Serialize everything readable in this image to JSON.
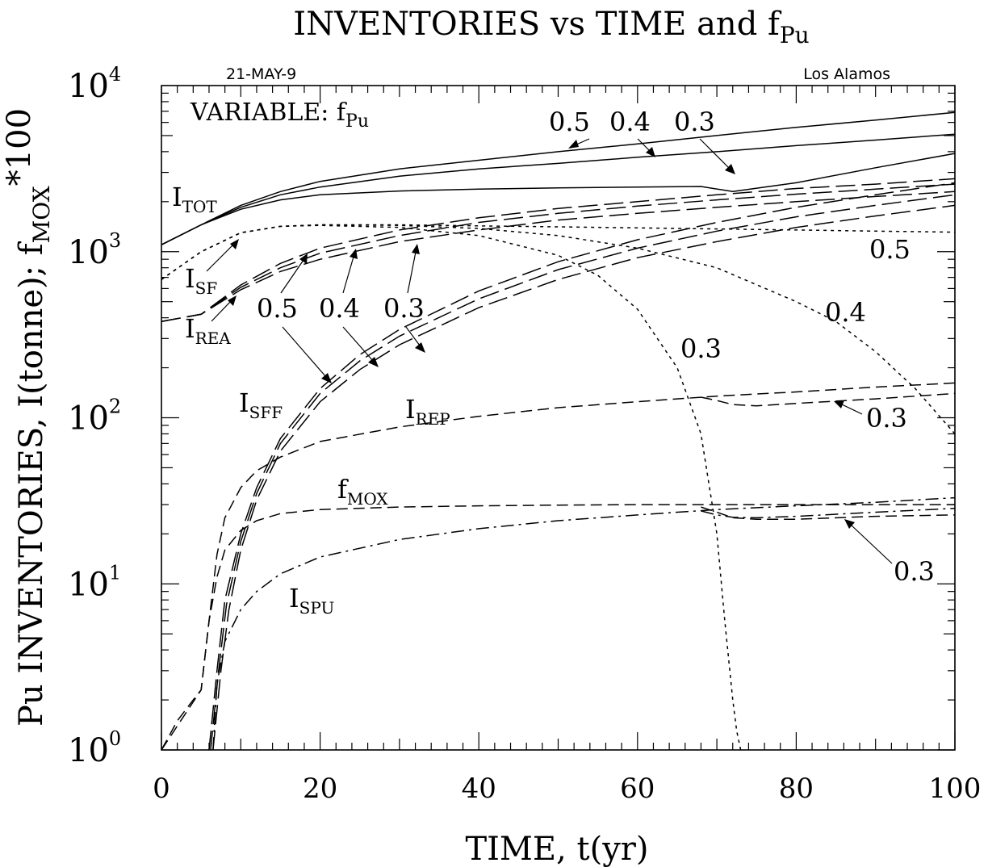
{
  "chart_data": {
    "type": "line",
    "title": "INVENTORIES vs TIME and f",
    "title_sub": "Pu",
    "date_label": "21-MAY-9",
    "org_label": "Los Alamos",
    "variable_label": "VARIABLE: f",
    "variable_label_sub": "Pu",
    "xlabel": "TIME, t(yr)",
    "ylabel": "Pu INVENTORIES, I(tonne); f",
    "ylabel_sub": "MOX",
    "ylabel_tail": "*100",
    "xlim": [
      0,
      100
    ],
    "ylim": [
      1,
      10000
    ],
    "yscale": "log",
    "x_ticks": [
      "0",
      "20",
      "40",
      "60",
      "80",
      "100"
    ],
    "y_ticks": [
      {
        "base": "10",
        "exp": "0"
      },
      {
        "base": "10",
        "exp": "1"
      },
      {
        "base": "10",
        "exp": "2"
      },
      {
        "base": "10",
        "exp": "3"
      },
      {
        "base": "10",
        "exp": "4"
      }
    ],
    "series": [
      {
        "group": "TOT",
        "fpu": "0.5",
        "style": "solid",
        "x": [
          0,
          5,
          10,
          15,
          20,
          30,
          40,
          50,
          60,
          70,
          80,
          90,
          100
        ],
        "y": [
          1100,
          1450,
          1900,
          2300,
          2650,
          3150,
          3550,
          4000,
          4450,
          5000,
          5600,
          6200,
          6900
        ]
      },
      {
        "group": "TOT",
        "fpu": "0.4",
        "style": "solid",
        "x": [
          0,
          5,
          10,
          15,
          20,
          30,
          40,
          50,
          60,
          70,
          80,
          90,
          100
        ],
        "y": [
          1100,
          1450,
          1850,
          2200,
          2450,
          2850,
          3150,
          3400,
          3700,
          4000,
          4350,
          4700,
          5100
        ]
      },
      {
        "group": "TOT",
        "fpu": "0.3",
        "style": "solid",
        "x": [
          0,
          5,
          10,
          15,
          20,
          30,
          40,
          50,
          60,
          68,
          72,
          80,
          90,
          100
        ],
        "y": [
          1100,
          1450,
          1800,
          2050,
          2200,
          2320,
          2380,
          2420,
          2450,
          2470,
          2300,
          2600,
          3200,
          3900
        ]
      },
      {
        "group": "SF",
        "fpu": "0.5",
        "style": "short-dash",
        "x": [
          0,
          5,
          10,
          15,
          20,
          30,
          40,
          50,
          60,
          70,
          80,
          90,
          100
        ],
        "y": [
          680,
          1000,
          1300,
          1420,
          1450,
          1450,
          1430,
          1410,
          1390,
          1370,
          1350,
          1330,
          1310
        ]
      },
      {
        "group": "SF",
        "fpu": "0.4",
        "style": "short-dash",
        "x": [
          0,
          5,
          10,
          15,
          20,
          30,
          40,
          50,
          60,
          70,
          80,
          85,
          90,
          95,
          100
        ],
        "y": [
          680,
          1000,
          1300,
          1420,
          1450,
          1440,
          1380,
          1250,
          1050,
          800,
          500,
          380,
          250,
          150,
          80
        ]
      },
      {
        "group": "SF",
        "fpu": "0.3",
        "style": "short-dash",
        "x": [
          0,
          5,
          10,
          15,
          20,
          30,
          40,
          50,
          55,
          60,
          65,
          68,
          70,
          71,
          72,
          72.5,
          73
        ],
        "y": [
          680,
          1000,
          1300,
          1420,
          1440,
          1400,
          1250,
          950,
          720,
          450,
          200,
          80,
          20,
          6,
          2,
          1.3,
          1
        ]
      },
      {
        "group": "REA",
        "fpu": "0.5",
        "style": "long-dash",
        "x": [
          0,
          5,
          10,
          15,
          20,
          30,
          40,
          50,
          60,
          70,
          80,
          90,
          100
        ],
        "y": [
          380,
          420,
          630,
          850,
          1050,
          1350,
          1600,
          1820,
          2000,
          2200,
          2400,
          2550,
          2750
        ]
      },
      {
        "group": "REA",
        "fpu": "0.4",
        "style": "long-dash",
        "x": [
          0,
          5,
          10,
          15,
          20,
          30,
          40,
          50,
          60,
          70,
          80,
          90,
          100
        ],
        "y": [
          380,
          420,
          610,
          800,
          980,
          1250,
          1500,
          1700,
          1880,
          2050,
          2220,
          2380,
          2550
        ]
      },
      {
        "group": "REA",
        "fpu": "0.3",
        "style": "long-dash",
        "x": [
          0,
          5,
          10,
          15,
          20,
          30,
          40,
          50,
          60,
          70,
          80,
          90,
          100
        ],
        "y": [
          380,
          420,
          590,
          760,
          900,
          1150,
          1350,
          1550,
          1700,
          1850,
          2000,
          2150,
          2300
        ]
      },
      {
        "group": "SFF",
        "fpu": "0.5",
        "style": "long-dash",
        "x": [
          6,
          7,
          8,
          10,
          12,
          15,
          20,
          25,
          30,
          40,
          50,
          60,
          70,
          80,
          90,
          100
        ],
        "y": [
          1,
          3,
          8,
          20,
          38,
          75,
          150,
          240,
          340,
          580,
          870,
          1180,
          1500,
          1850,
          2200,
          2600
        ]
      },
      {
        "group": "SFF",
        "fpu": "0.4",
        "style": "long-dash",
        "x": [
          6.2,
          7.2,
          8.2,
          10,
          12,
          15,
          20,
          25,
          30,
          40,
          50,
          60,
          70,
          80,
          90,
          100
        ],
        "y": [
          1,
          3,
          7.5,
          18,
          35,
          70,
          140,
          220,
          310,
          520,
          780,
          1050,
          1330,
          1620,
          1900,
          2200
        ]
      },
      {
        "group": "SFF",
        "fpu": "0.3",
        "style": "long-dash",
        "x": [
          6.5,
          7.5,
          8.5,
          10,
          12,
          15,
          20,
          25,
          30,
          40,
          50,
          60,
          70,
          80,
          90,
          100
        ],
        "y": [
          1,
          3,
          7,
          16,
          32,
          63,
          125,
          195,
          275,
          460,
          680,
          920,
          1150,
          1400,
          1640,
          1900
        ]
      },
      {
        "group": "REP",
        "fpu": "0.5",
        "style": "dash",
        "x": [
          0,
          2,
          4,
          5,
          6,
          7,
          8,
          10,
          12,
          15,
          20,
          30,
          40,
          50,
          60,
          70,
          80,
          90,
          100
        ],
        "y": [
          1,
          1.5,
          2,
          2.3,
          6,
          15,
          25,
          38,
          48,
          58,
          72,
          88,
          102,
          115,
          125,
          135,
          143,
          153,
          162
        ]
      },
      {
        "group": "REP",
        "fpu": "0.3",
        "style": "dash",
        "x": [
          68,
          70,
          72,
          75,
          80,
          90,
          100
        ],
        "y": [
          133,
          127,
          120,
          118,
          122,
          130,
          140
        ]
      },
      {
        "group": "MOX",
        "fpu": "0.5",
        "style": "dash",
        "x": [
          0,
          5,
          6,
          7,
          8,
          10,
          12,
          15,
          20,
          30,
          40,
          50,
          60,
          70,
          80,
          90,
          100
        ],
        "y": [
          1,
          2.3,
          6,
          11,
          16,
          21,
          24,
          26.5,
          28,
          29,
          29.5,
          29.8,
          30,
          30,
          30,
          30,
          30
        ]
      },
      {
        "group": "MOX",
        "fpu": "0.3",
        "style": "dash",
        "x": [
          68,
          70,
          72,
          75,
          80,
          90,
          100
        ],
        "y": [
          29,
          27,
          25,
          24.5,
          24.5,
          25.5,
          26
        ]
      },
      {
        "group": "SPU",
        "fpu": "0.5",
        "style": "dash-dot",
        "x": [
          6.5,
          7,
          8,
          10,
          12,
          15,
          20,
          30,
          40,
          50,
          60,
          70,
          80,
          90,
          100
        ],
        "y": [
          1,
          2.5,
          4.5,
          7,
          9,
          11.5,
          14.5,
          18.5,
          21.5,
          24,
          26,
          28,
          29.5,
          31,
          33
        ]
      },
      {
        "group": "SPU",
        "fpu": "0.3",
        "style": "dash-dot",
        "x": [
          68,
          70,
          72,
          75,
          80,
          90,
          100
        ],
        "y": [
          27.5,
          26,
          25.2,
          25,
          25.5,
          27,
          28.5
        ]
      }
    ],
    "curve_labels": [
      {
        "key": "ITOT",
        "main": "I",
        "sub": "TOT"
      },
      {
        "key": "ISF",
        "main": "I",
        "sub": "SF"
      },
      {
        "key": "IREA",
        "main": "I",
        "sub": "REA"
      },
      {
        "key": "ISFF",
        "main": "I",
        "sub": "SFF"
      },
      {
        "key": "IREP",
        "main": "I",
        "sub": "REP"
      },
      {
        "key": "fMOX",
        "main": "f",
        "sub": "MOX"
      },
      {
        "key": "ISPU",
        "main": "I",
        "sub": "SPU"
      }
    ],
    "annotations": {
      "tot": [
        "0.5",
        "0.4",
        "0.3"
      ],
      "rea": [
        "0.5",
        "0.4",
        "0.3"
      ],
      "sf_right": [
        "0.5",
        "0.4",
        "0.3"
      ],
      "rep_right": "0.3",
      "mox_right": "0.3"
    }
  }
}
